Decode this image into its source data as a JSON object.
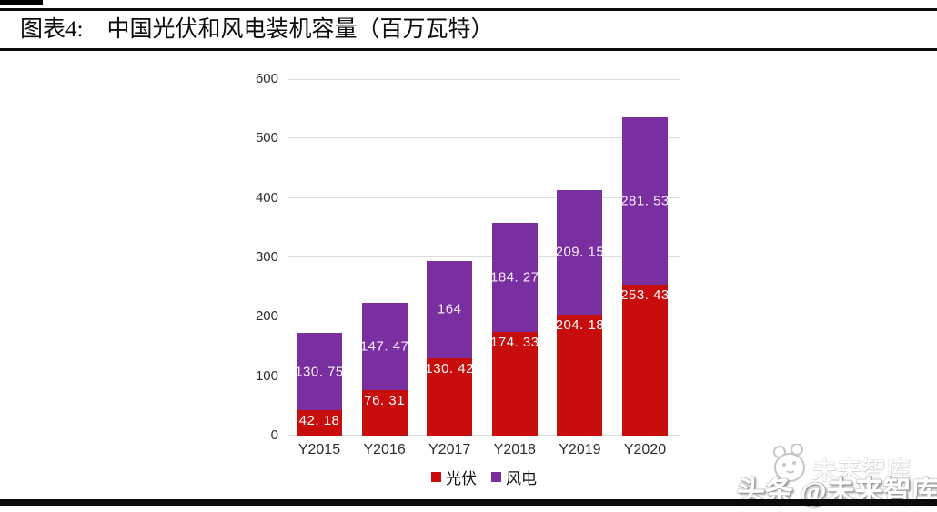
{
  "page": {
    "title_prefix": "图表4:",
    "title_text": "中国光伏和风电装机容量（百万瓦特）"
  },
  "watermark": {
    "ghost_text": "未来智库",
    "main_text": "头条 @未来智库",
    "logo": "panda-face-icon"
  },
  "colors": {
    "solar_red": "#c80d0d",
    "wind_purple": "#7a2fa0",
    "gridline": "#dcdcdc",
    "rule_black": "#0a0a0a"
  },
  "chart_data": {
    "type": "bar",
    "stacked": true,
    "title": "中国光伏和风电装机容量（百万瓦特）",
    "categories": [
      "Y2015",
      "Y2016",
      "Y2017",
      "Y2018",
      "Y2019",
      "Y2020"
    ],
    "series": [
      {
        "name": "光伏",
        "color": "#c80d0d",
        "label_color": "#ffffff",
        "values": [
          42.18,
          76.31,
          130.42,
          174.33,
          204.18,
          253.43
        ],
        "labels": [
          "42. 18",
          "76. 31",
          "130. 42",
          "174. 33",
          "204. 18",
          "253. 43"
        ]
      },
      {
        "name": "风电",
        "color": "#7a2fa0",
        "label_color": "#f7ecf7",
        "values": [
          130.75,
          147.47,
          164,
          184.27,
          209.15,
          281.53
        ],
        "labels": [
          "130. 75",
          "147. 47",
          "164",
          "184. 27",
          "209. 15",
          "281. 53"
        ]
      }
    ],
    "y_axis": {
      "min": 0,
      "max": 600,
      "step": 100,
      "ticks": [
        "0",
        "100",
        "200",
        "300",
        "400",
        "500",
        "600"
      ]
    },
    "xlabel": "",
    "ylabel": "",
    "grid": true,
    "legend_position": "bottom"
  }
}
